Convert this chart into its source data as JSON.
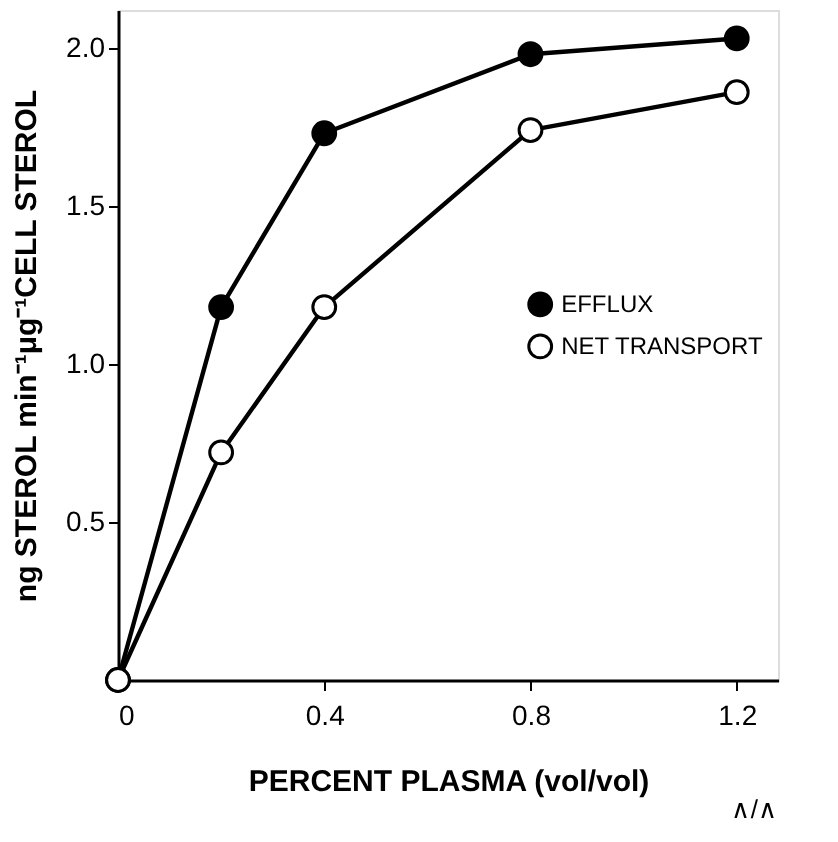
{
  "chart_data": {
    "type": "line",
    "x": [
      0,
      0.2,
      0.4,
      0.8,
      1.2
    ],
    "series": [
      {
        "name": "EFFLUX",
        "color": "#000000",
        "values": [
          0,
          1.18,
          1.73,
          1.98,
          2.03
        ]
      },
      {
        "name": "NET TRANSPORT",
        "color": "#ffffff",
        "values": [
          0,
          0.72,
          1.18,
          1.74,
          1.86
        ]
      }
    ],
    "xlabel": "PERCENT PLASMA (vol/vol)",
    "ylabel": "ng STEROL min⁻¹μg⁻¹CELL STEROL",
    "xlim": [
      0,
      1.28
    ],
    "ylim": [
      0,
      2.12
    ],
    "xticks": [
      {
        "value": 0,
        "label": "0"
      },
      {
        "value": 0.4,
        "label": "0.4"
      },
      {
        "value": 0.8,
        "label": "0.8"
      },
      {
        "value": 1.2,
        "label": "1.2"
      }
    ],
    "yticks": [
      {
        "value": 0.5,
        "label": "0.5"
      },
      {
        "value": 1,
        "label": "1.0"
      },
      {
        "value": 1.5,
        "label": "1.5"
      },
      {
        "value": 2,
        "label": "2.0"
      }
    ],
    "annotations": [
      "∧/∧"
    ],
    "marker": "circle",
    "line_style": "solid",
    "grid": false,
    "legend": "right"
  }
}
